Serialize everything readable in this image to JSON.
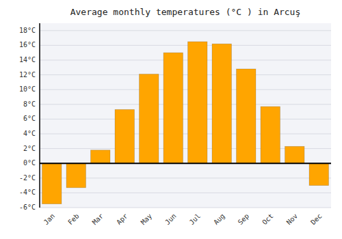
{
  "chart_data": {
    "type": "bar",
    "title": "Average monthly temperatures (°C ) in Arcuş",
    "categories": [
      "Jan",
      "Feb",
      "Mar",
      "Apr",
      "May",
      "Jun",
      "Jul",
      "Aug",
      "Sep",
      "Oct",
      "Nov",
      "Dec"
    ],
    "values": [
      -5.5,
      -3.3,
      1.8,
      7.3,
      12.1,
      15.0,
      16.5,
      16.2,
      12.8,
      7.7,
      2.3,
      -3.0
    ],
    "color": "#FFA500",
    "ylim": [
      -6,
      19
    ],
    "yticks": [
      {
        "value": -6,
        "label": "-6°C"
      },
      {
        "value": -4,
        "label": "-4°C"
      },
      {
        "value": -2,
        "label": "-2°C"
      },
      {
        "value": 0,
        "label": "0°C"
      },
      {
        "value": 2,
        "label": "2°C"
      },
      {
        "value": 4,
        "label": "4°C"
      },
      {
        "value": 6,
        "label": "6°C"
      },
      {
        "value": 8,
        "label": "8°C"
      },
      {
        "value": 10,
        "label": "10°C"
      },
      {
        "value": 12,
        "label": "12°C"
      },
      {
        "value": 14,
        "label": "14°C"
      },
      {
        "value": 16,
        "label": "16°C"
      },
      {
        "value": 18,
        "label": "18°C"
      }
    ],
    "grid": true
  }
}
